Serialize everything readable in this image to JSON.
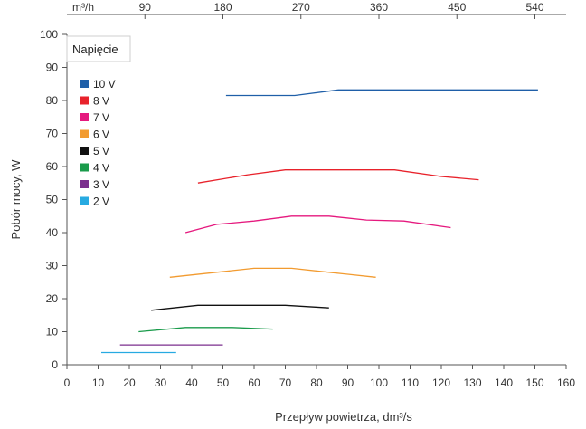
{
  "chart_data": {
    "type": "line",
    "xlabel": "Przepływ powietrza, dm³/s",
    "ylabel": "Pobór mocy, W",
    "xlim": [
      0,
      160
    ],
    "ylim": [
      0,
      100
    ],
    "x_ticks": [
      0,
      10,
      20,
      30,
      40,
      50,
      60,
      70,
      80,
      90,
      100,
      110,
      120,
      130,
      140,
      150,
      160
    ],
    "y_ticks": [
      0,
      10,
      20,
      30,
      40,
      50,
      60,
      70,
      80,
      90,
      100
    ],
    "top_axis": {
      "unit_label": "m³/h",
      "ticks": [
        90,
        180,
        270,
        360,
        450,
        540
      ],
      "dm3s_per_m3h": 0.277778
    },
    "legend": {
      "title": "Napięcie",
      "position": "top-left"
    },
    "grid": false,
    "series": [
      {
        "name": "10 V",
        "color": "#1f5fa8",
        "x": [
          51,
          73,
          87,
          151
        ],
        "y": [
          81.5,
          81.5,
          83.2,
          83.2
        ]
      },
      {
        "name": "8 V",
        "color": "#e8222b",
        "x": [
          42,
          58,
          70,
          105,
          120,
          132
        ],
        "y": [
          55,
          57.5,
          59,
          59,
          57,
          56
        ]
      },
      {
        "name": "7 V",
        "color": "#e5197e",
        "x": [
          38,
          48,
          60,
          72,
          84,
          96,
          108,
          123
        ],
        "y": [
          40,
          42.5,
          43.5,
          45,
          45,
          43.8,
          43.5,
          41.5
        ]
      },
      {
        "name": "6 V",
        "color": "#f29b30",
        "x": [
          33,
          48,
          60,
          72,
          84,
          99
        ],
        "y": [
          26.5,
          28,
          29.2,
          29.2,
          28,
          26.5
        ]
      },
      {
        "name": "5 V",
        "color": "#111111",
        "x": [
          27,
          42,
          56,
          70,
          84
        ],
        "y": [
          16.5,
          18,
          18,
          18,
          17.2
        ]
      },
      {
        "name": "4 V",
        "color": "#1a9b4b",
        "x": [
          23,
          38,
          53,
          66
        ],
        "y": [
          10,
          11.3,
          11.3,
          10.8
        ]
      },
      {
        "name": "3 V",
        "color": "#7b2f8e",
        "x": [
          17,
          50
        ],
        "y": [
          6,
          6
        ]
      },
      {
        "name": "2 V",
        "color": "#27aae1",
        "x": [
          11,
          35
        ],
        "y": [
          3.7,
          3.7
        ]
      }
    ]
  }
}
